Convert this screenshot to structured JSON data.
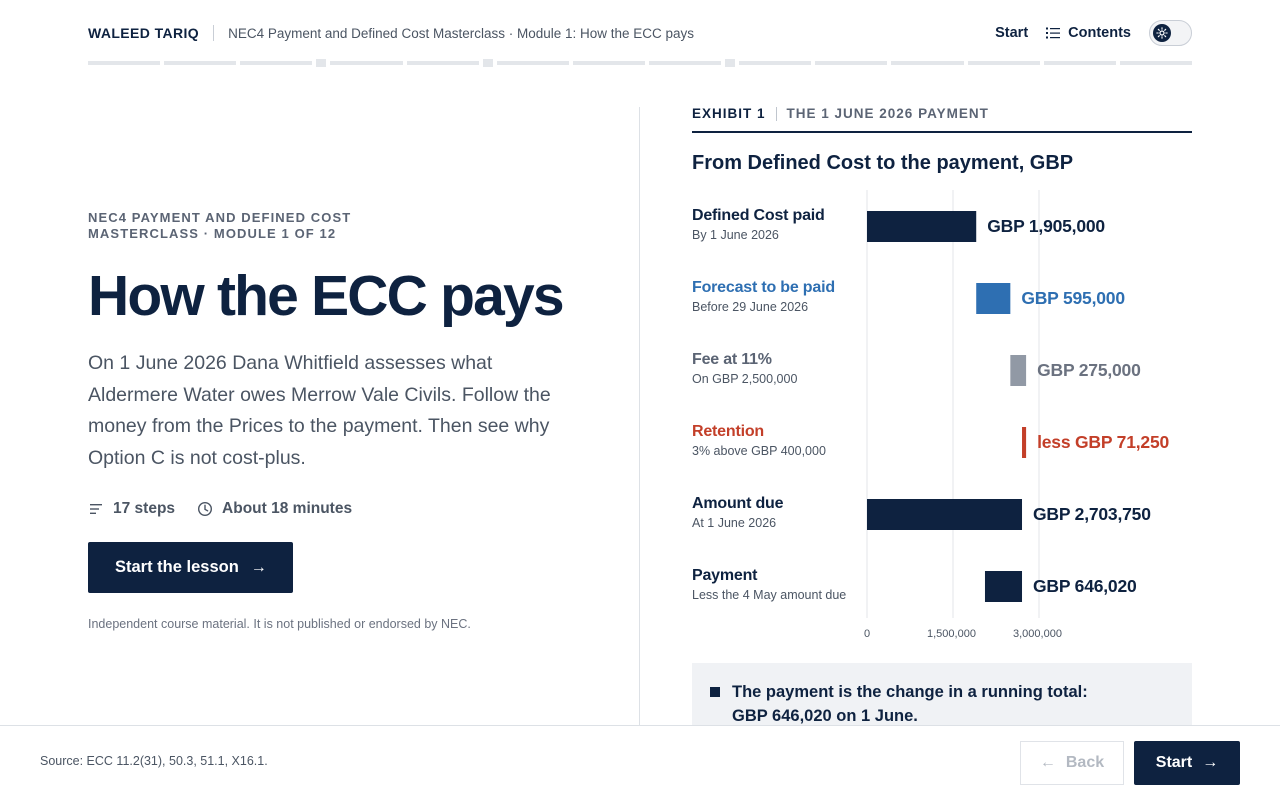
{
  "header": {
    "brand": "WALEED TARIQ",
    "course": "NEC4 Payment and Defined Cost Masterclass · Module 1: How the ECC pays",
    "start_label": "Start",
    "contents_label": "Contents",
    "icons": [
      "list-icon",
      "theme-toggle-icon"
    ]
  },
  "progress": {
    "segments": 17,
    "current_step": 0
  },
  "intro": {
    "eyebrow": "NEC4 PAYMENT AND DEFINED COST MASTERCLASS · MODULE 1 OF 12",
    "title": "How the ECC pays",
    "lede": "On 1 June 2026 Dana Whitfield assesses what Aldermere Water owes Merrow Vale Civils. Follow the money from the Prices to the payment. Then see why Option C is not cost-plus.",
    "steps": "17 steps",
    "duration": "About 18 minutes",
    "cta": "Start the lesson",
    "disclaimer": "Independent course material. It is not published or endorsed by NEC."
  },
  "exhibit": {
    "number": "EXHIBIT 1",
    "label": "THE 1 JUNE 2026 PAYMENT",
    "title": "From Defined Cost to the payment, GBP"
  },
  "chart_data": {
    "type": "bar",
    "title": "From Defined Cost to the payment, GBP",
    "xlim": [
      0,
      3000000
    ],
    "ticks": [
      "0",
      "1,500,000",
      "3,000,000"
    ],
    "tick_values": [
      0,
      1500000,
      3000000
    ],
    "categories": [
      "Defined Cost paid",
      "Forecast to be paid",
      "Fee at 11%",
      "Retention",
      "Amount due",
      "Payment"
    ],
    "subtitles": [
      "By 1 June 2026",
      "Before 29 June 2026",
      "On GBP 2,500,000",
      "3% above GBP 400,000",
      "At 1 June 2026",
      "Less the 4 May amount due"
    ],
    "bars": [
      {
        "start": 0,
        "end": 1905000,
        "label": "GBP 1,905,000",
        "color": "#0e2240"
      },
      {
        "start": 1905000,
        "end": 2500000,
        "label": "GBP 595,000",
        "color": "#2e6fb2"
      },
      {
        "start": 2500000,
        "end": 2775000,
        "label": "GBP 275,000",
        "color": "#9199a5"
      },
      {
        "start": 2703750,
        "end": 2775000,
        "label": "less GBP 71,250",
        "color": "#c33f29"
      },
      {
        "start": 0,
        "end": 2703750,
        "label": "GBP 2,703,750",
        "color": "#0e2240"
      },
      {
        "start": 2057730,
        "end": 2703750,
        "label": "GBP 646,020",
        "color": "#0e2240"
      }
    ],
    "label_colors": [
      "#0e2240",
      "#2e6fb2",
      "#5b6474",
      "#c33f29",
      "#0e2240",
      "#0e2240"
    ],
    "grid": true
  },
  "callout": {
    "text_line1": "The payment is the change in a running total:",
    "text_line2": "GBP 646,020 on 1 June."
  },
  "footer": {
    "source": "Source: ECC 11.2(31), 50.3, 51.1, X16.1.",
    "back_label": "Back",
    "start_label": "Start"
  }
}
